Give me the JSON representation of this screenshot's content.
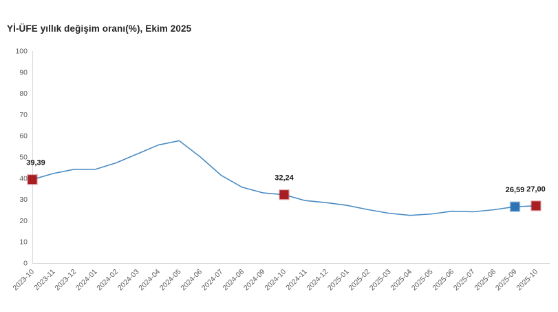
{
  "title": "Yİ-ÜFE yıllık değişim oranı(%), Ekim 2025",
  "colors": {
    "line": "#4a8bc2",
    "marker_red": "#a81e22",
    "marker_blue": "#2e74b5",
    "axis_line": "#d9d9d9",
    "tick_text": "#595959",
    "title_text": "#262626",
    "annotation_text": "#141414",
    "background": "#ffffff"
  },
  "chart_data": {
    "type": "line",
    "title": "Yİ-ÜFE yıllık değişim oranı(%), Ekim 2025",
    "x": [
      "2023-10",
      "2023-11",
      "2023-12",
      "2024-01",
      "2024-02",
      "2024-03",
      "2024-04",
      "2024-05",
      "2024-06",
      "2024-07",
      "2024-08",
      "2024-09",
      "2024-10",
      "2024-11",
      "2024-12",
      "2025-01",
      "2025-02",
      "2025-03",
      "2025-04",
      "2025-05",
      "2025-06",
      "2025-07",
      "2025-08",
      "2025-09",
      "2025-10"
    ],
    "series": [
      {
        "name": "Yİ-ÜFE yıllık değişim oranı (%)",
        "values": [
          39.39,
          42.25,
          44.22,
          44.2,
          47.29,
          51.47,
          55.66,
          57.68,
          50.09,
          41.37,
          35.75,
          33.09,
          32.24,
          29.47,
          28.52,
          27.2,
          25.21,
          23.5,
          22.5,
          23.13,
          24.45,
          24.19,
          25.16,
          26.59,
          27.0
        ]
      }
    ],
    "ylim": [
      0,
      100
    ],
    "ytick_step": 10,
    "grid": false,
    "legend": "none",
    "annotations": [
      {
        "x": "2023-10",
        "value": 39.39,
        "label": "39,39",
        "marker_color": "red"
      },
      {
        "x": "2024-10",
        "value": 32.24,
        "label": "32,24",
        "marker_color": "red"
      },
      {
        "x": "2025-09",
        "value": 26.59,
        "label": "26,59",
        "marker_color": "blue"
      },
      {
        "x": "2025-10",
        "value": 27.0,
        "label": "27,00",
        "marker_color": "red"
      }
    ]
  }
}
